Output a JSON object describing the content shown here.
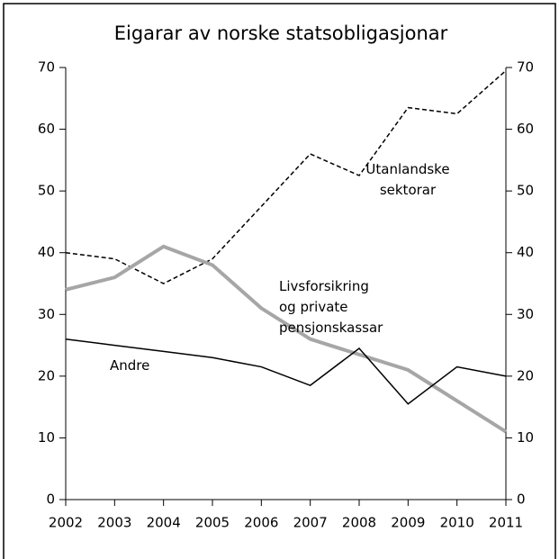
{
  "chart_data": {
    "type": "line",
    "title": "Eigarar av norske statsobligasjonar",
    "categories": [
      "2002",
      "2003",
      "2004",
      "2005",
      "2006",
      "2007",
      "2008",
      "2009",
      "2010",
      "2011"
    ],
    "series": [
      {
        "name": "Utanlandske sektorar",
        "color": "#000000",
        "line_style": "dashed",
        "values": [
          40,
          39,
          35,
          39,
          47.5,
          56,
          52.5,
          63.5,
          62.5,
          69.5
        ]
      },
      {
        "name": "Livsforsikring og private pensjonskassar",
        "color": "#a6a6a6",
        "line_style": "solid",
        "values": [
          34,
          36,
          41,
          38,
          31,
          26,
          23.5,
          21,
          16,
          11
        ]
      },
      {
        "name": "Andre",
        "color": "#000000",
        "line_style": "solid",
        "values": [
          26,
          25,
          24,
          23,
          21.5,
          18.5,
          24.5,
          15.5,
          21.5,
          20
        ]
      }
    ],
    "ylim": [
      0,
      70
    ],
    "yticks": [
      0,
      10,
      20,
      30,
      40,
      50,
      60,
      70
    ],
    "y2lim": [
      0,
      70
    ],
    "y2ticks": [
      0,
      10,
      20,
      30,
      40,
      50,
      60,
      70
    ]
  }
}
